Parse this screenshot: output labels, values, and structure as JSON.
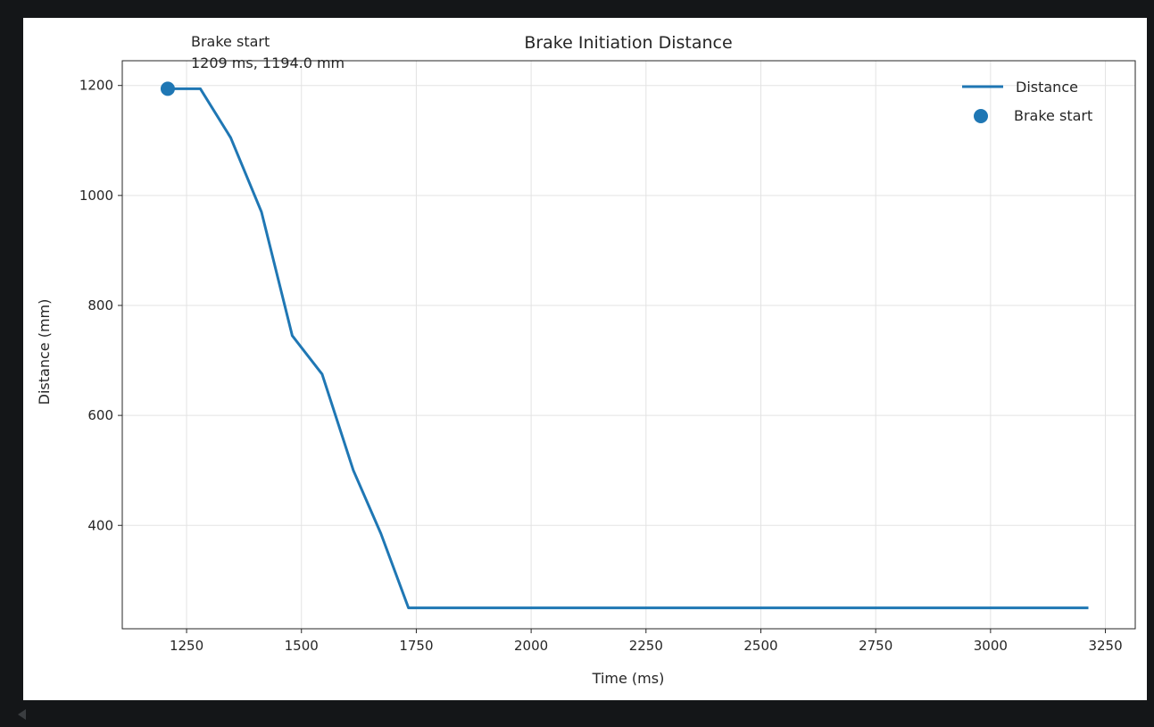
{
  "chart_data": {
    "type": "line",
    "title": "Brake Initiation Distance",
    "xlabel": "Time (ms)",
    "ylabel": "Distance (mm)",
    "xlim": [
      1110,
      3315
    ],
    "ylim": [
      212,
      1245
    ],
    "xticks": [
      1250,
      1500,
      1750,
      2000,
      2250,
      2500,
      2750,
      3000,
      3250
    ],
    "yticks": [
      400,
      600,
      800,
      1000,
      1200
    ],
    "grid": true,
    "legend": "top-right",
    "series": [
      {
        "name": "Distance",
        "kind": "line",
        "color": "#1f77b4",
        "x": [
          1209,
          1280,
          1346,
          1413,
          1480,
          1545,
          1613,
          1673,
          1733,
          1800,
          2000,
          2500,
          3000,
          3213
        ],
        "y": [
          1194,
          1194,
          1105,
          970,
          745,
          675,
          500,
          385,
          250,
          250,
          250,
          250,
          250,
          250
        ]
      },
      {
        "name": "Brake start",
        "kind": "scatter",
        "color": "#1f77b4",
        "x": [
          1209
        ],
        "y": [
          1194
        ]
      }
    ],
    "annotations": [
      {
        "label": "Brake start",
        "detail": "1209 ms, 1194.0 mm",
        "x": 1209,
        "y": 1194
      }
    ]
  }
}
